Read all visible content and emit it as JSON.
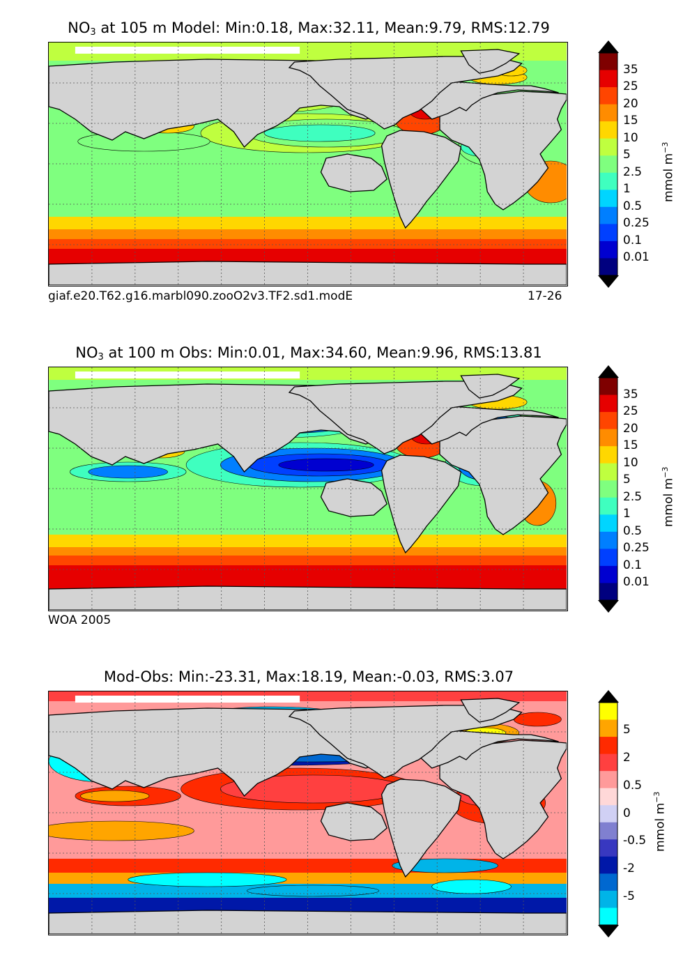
{
  "panels": [
    {
      "title_prefix": "NO",
      "title_sub": "3",
      "title_rest": " at 105 m Model: Min:0.18, Max:32.11, Mean:9.79, RMS:12.79",
      "footer_left": "giaf.e20.T62.g16.marbl090.zooO2v3.TF2.sd1.modE",
      "footer_right": "17-26",
      "colorbar": {
        "unit_base": "mmol m",
        "unit_exp": "−3",
        "labels": [
          "35",
          "25",
          "20",
          "15",
          "10",
          "5",
          "2.5",
          "1",
          "0.5",
          "0.25",
          "0.1",
          "0.01"
        ],
        "colors": [
          "#7f0000",
          "#e60000",
          "#ff4500",
          "#ff8c00",
          "#ffd700",
          "#bfff3f",
          "#7fff7f",
          "#3fffbf",
          "#00d5ff",
          "#007fff",
          "#0040ff",
          "#0000d0",
          "#00007f"
        ],
        "under_color": "#000000",
        "over_color": "#000000"
      }
    },
    {
      "title_prefix": "NO",
      "title_sub": "3",
      "title_rest": " at 100 m Obs: Min:0.01, Max:34.60, Mean:9.96, RMS:13.81",
      "footer_left": "WOA 2005",
      "footer_right": "",
      "colorbar": {
        "unit_base": "mmol m",
        "unit_exp": "−3",
        "labels": [
          "35",
          "25",
          "20",
          "15",
          "10",
          "5",
          "2.5",
          "1",
          "0.5",
          "0.25",
          "0.1",
          "0.01"
        ],
        "colors": [
          "#7f0000",
          "#e60000",
          "#ff4500",
          "#ff8c00",
          "#ffd700",
          "#bfff3f",
          "#7fff7f",
          "#3fffbf",
          "#00d5ff",
          "#007fff",
          "#0040ff",
          "#0000d0",
          "#00007f"
        ],
        "under_color": "#000000",
        "over_color": "#000000"
      }
    },
    {
      "title_prefix": "Mod-Obs: Min:-23.31, Max:18.19, Mean:-0.03, RMS:3.07",
      "title_sub": "",
      "title_rest": "",
      "footer_left": "",
      "footer_right": "",
      "colorbar": {
        "unit_base": "mmol m",
        "unit_exp": "−3",
        "labels": [
          "5",
          "2",
          "0.5",
          "0",
          "-0.5",
          "-2",
          "-5"
        ],
        "colors": [
          "#ffff00",
          "#ffa500",
          "#ff2a00",
          "#ff4040",
          "#ff9a9a",
          "#ffd8d8",
          "#d0d0f4",
          "#8080d0",
          "#3838c0",
          "#0018a8",
          "#0068d0",
          "#00b4e8",
          "#00ffff"
        ],
        "under_color": "#000000",
        "over_color": "#000000"
      }
    }
  ],
  "chart_data": [
    {
      "type": "heatmap",
      "title": "NO3 at 105 m Model: Min:0.18, Max:32.11, Mean:9.79, RMS:12.79",
      "variable": "NO3",
      "depth": "105 m",
      "source": "Model",
      "stats": {
        "min": 0.18,
        "max": 32.11,
        "mean": 9.79,
        "rms": 12.79
      },
      "colorbar_levels": [
        0.01,
        0.1,
        0.25,
        0.5,
        1,
        2.5,
        5,
        10,
        15,
        20,
        25,
        35
      ],
      "colorbar_unit": "mmol m−3",
      "extend": "both",
      "grid": true
    },
    {
      "type": "heatmap",
      "title": "NO3 at 100 m Obs: Min:0.01, Max:34.60, Mean:9.96, RMS:13.81",
      "variable": "NO3",
      "depth": "100 m",
      "source": "Obs",
      "stats": {
        "min": 0.01,
        "max": 34.6,
        "mean": 9.96,
        "rms": 13.81
      },
      "colorbar_levels": [
        0.01,
        0.1,
        0.25,
        0.5,
        1,
        2.5,
        5,
        10,
        15,
        20,
        25,
        35
      ],
      "colorbar_unit": "mmol m−3",
      "extend": "both",
      "grid": true
    },
    {
      "type": "heatmap",
      "title": "Mod-Obs: Min:-23.31, Max:18.19, Mean:-0.03, RMS:3.07",
      "stats": {
        "min": -23.31,
        "max": 18.19,
        "mean": -0.03,
        "rms": 3.07
      },
      "colorbar_levels": [
        -5,
        -2,
        -0.5,
        0,
        0.5,
        2,
        5
      ],
      "colorbar_unit": "mmol m−3",
      "extend": "both",
      "grid": true
    }
  ]
}
